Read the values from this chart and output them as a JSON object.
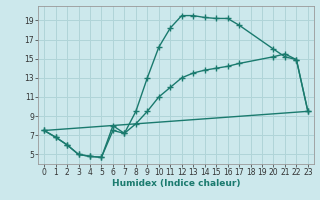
{
  "xlabel": "Humidex (Indice chaleur)",
  "bg_color": "#cce8ec",
  "grid_color": "#b0d4d8",
  "line_color": "#1a7a6e",
  "xlim": [
    -0.5,
    23.5
  ],
  "ylim": [
    4.0,
    20.5
  ],
  "xticks": [
    0,
    1,
    2,
    3,
    4,
    5,
    6,
    7,
    8,
    9,
    10,
    11,
    12,
    13,
    14,
    15,
    16,
    17,
    18,
    19,
    20,
    21,
    22,
    23
  ],
  "yticks": [
    5,
    7,
    9,
    11,
    13,
    15,
    17,
    19
  ],
  "curve1_x": [
    0,
    1,
    2,
    3,
    4,
    5,
    6,
    7,
    8,
    9,
    10,
    11,
    12,
    13,
    14,
    15,
    16,
    17,
    20,
    21,
    22,
    23
  ],
  "curve1_y": [
    7.5,
    6.8,
    6.0,
    5.0,
    4.8,
    4.7,
    7.5,
    7.2,
    9.5,
    13.0,
    16.2,
    18.2,
    19.5,
    19.5,
    19.3,
    19.2,
    19.2,
    18.5,
    16.0,
    15.2,
    14.9,
    9.5
  ],
  "curve2_x": [
    0,
    1,
    2,
    3,
    4,
    5,
    6,
    7,
    8,
    9,
    10,
    11,
    12,
    13,
    14,
    15,
    16,
    17,
    20,
    21,
    22,
    23
  ],
  "curve2_y": [
    7.5,
    6.8,
    6.0,
    5.0,
    4.8,
    4.7,
    8.0,
    7.2,
    8.2,
    9.5,
    11.0,
    12.0,
    13.0,
    13.5,
    13.8,
    14.0,
    14.2,
    14.5,
    15.2,
    15.5,
    14.9,
    9.5
  ],
  "line3_x": [
    0,
    23
  ],
  "line3_y": [
    7.5,
    9.5
  ]
}
